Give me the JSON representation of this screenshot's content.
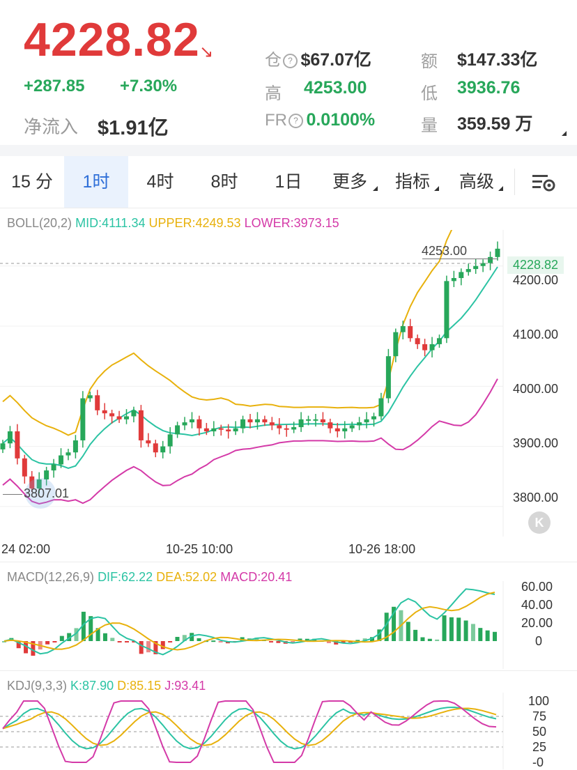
{
  "header": {
    "price": "4228.82",
    "change_abs": "+287.85",
    "change_pct": "+7.30%",
    "net_inflow_label": "净流入",
    "net_inflow_value": "$1.91亿"
  },
  "stats": {
    "position_label": "仓",
    "position_value": "$67.07亿",
    "amount_label": "额",
    "amount_value": "$147.33亿",
    "high_label": "高",
    "high_value": "4253.00",
    "low_label": "低",
    "low_value": "3936.76",
    "fr_label": "FR",
    "fr_value": "0.0100%",
    "volume_label": "量",
    "volume_value": "359.59 万"
  },
  "tabs": [
    {
      "label": "15 分"
    },
    {
      "label": "1时"
    },
    {
      "label": "4时"
    },
    {
      "label": "8时"
    },
    {
      "label": "1日"
    },
    {
      "label": "更多"
    },
    {
      "label": "指标"
    },
    {
      "label": "高级"
    }
  ],
  "boll": {
    "name": "BOLL(20,2)",
    "mid": "MID:4111.34",
    "upper": "UPPER:4249.53",
    "lower": "LOWER:3973.15",
    "high_marker": "4253.00",
    "low_marker": "3807.01",
    "current_price_tag": "4228.82",
    "axis_labels": [
      "4200.00",
      "4100.00",
      "4000.00",
      "3900.00",
      "3800.00"
    ],
    "time_labels": [
      "24 02:00",
      "10-25 10:00",
      "10-26 18:00"
    ],
    "back_button": "K"
  },
  "macd": {
    "name": "MACD(12,26,9)",
    "dif": "DIF:62.22",
    "dea": "DEA:52.02",
    "macd": "MACD:20.41",
    "axis_labels": [
      "60.00",
      "40.00",
      "20.00",
      "0"
    ]
  },
  "kdj": {
    "name": "KDJ(9,3,3)",
    "k": "K:87.90",
    "d": "D:85.15",
    "j": "J:93.41",
    "axis_labels": [
      "100",
      "75",
      "50",
      "25",
      "-0"
    ]
  },
  "colors": {
    "up": "#27a75a",
    "down": "#e03a3a",
    "mid": "#2bc3a3",
    "upper": "#e8b10c",
    "lower": "#d43aa8",
    "active_tab": "#2f6fd8"
  },
  "icons": {
    "settings": "chart-settings-icon",
    "down_arrow": "trend-down-arrow-icon"
  },
  "chart_data": [
    {
      "type": "candlestick",
      "title": "BOLL(20,2)",
      "interval": "1h",
      "ylim": [
        3750,
        4260
      ],
      "x_tick_labels": [
        "24 02:00",
        "10-25 10:00",
        "10-26 18:00"
      ],
      "close_series": [
        3905,
        3925,
        3880,
        3850,
        3830,
        3845,
        3860,
        3870,
        3885,
        3890,
        3910,
        3980,
        3985,
        3960,
        3955,
        3950,
        3945,
        3950,
        3960,
        3910,
        3905,
        3890,
        3900,
        3920,
        3935,
        3940,
        3945,
        3930,
        3925,
        3930,
        3928,
        3925,
        3930,
        3945,
        3940,
        3945,
        3940,
        3935,
        3930,
        3928,
        3932,
        3945,
        3945,
        3945,
        3940,
        3930,
        3925,
        3930,
        3935,
        3940,
        3945,
        3950,
        3980,
        4050,
        4090,
        4100,
        4080,
        4070,
        4060,
        4070,
        4080,
        4175,
        4180,
        4190,
        4195,
        4200,
        4205,
        4215,
        4228.82
      ],
      "series": [
        {
          "name": "MID",
          "last": 4111.34
        },
        {
          "name": "UPPER",
          "last": 4249.53
        },
        {
          "name": "LOWER",
          "last": 3973.15
        }
      ],
      "annotations": {
        "high": 4253.0,
        "low": 3807.01,
        "last_price": 4228.82
      }
    },
    {
      "type": "bar",
      "title": "MACD(12,26,9)",
      "ylim": [
        -10,
        65
      ],
      "series": [
        {
          "name": "DIF",
          "last": 62.22
        },
        {
          "name": "DEA",
          "last": 52.02
        },
        {
          "name": "MACD",
          "last": 20.41
        }
      ]
    },
    {
      "type": "line",
      "title": "KDJ(9,3,3)",
      "ylim": [
        0,
        100
      ],
      "series": [
        {
          "name": "K",
          "last": 87.9
        },
        {
          "name": "D",
          "last": 85.15
        },
        {
          "name": "J",
          "last": 93.41
        }
      ]
    }
  ]
}
